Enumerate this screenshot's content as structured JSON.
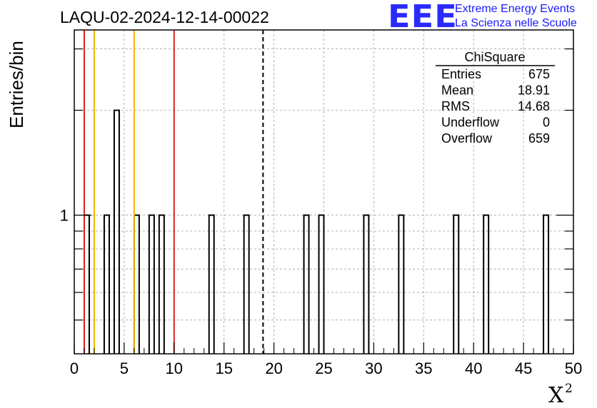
{
  "header": {
    "title": "LAQU-02-2024-12-14-00022"
  },
  "logo": {
    "mark": "EEE",
    "line1": "Extreme Energy Events",
    "line2": "La Scienza nelle Scuole",
    "color": "#1a1aff"
  },
  "axes": {
    "ylabel": "Entries/bin",
    "xlabel": "X",
    "xlabel_sup": "2"
  },
  "stats_box": {
    "title": "ChiSquare",
    "rows": [
      {
        "label": "Entries",
        "value": "675"
      },
      {
        "label": "Mean",
        "value": "18.91"
      },
      {
        "label": "RMS",
        "value": "14.68"
      },
      {
        "label": "Underflow",
        "value": "0"
      },
      {
        "label": "Overflow",
        "value": "659"
      }
    ]
  },
  "chart_data": {
    "type": "bar",
    "histogram": true,
    "title": "LAQU-02-2024-12-14-00022",
    "xlabel": "X²",
    "ylabel": "Entries/bin",
    "xlim": [
      0,
      50
    ],
    "bin_width": 0.5,
    "y_scale": "log",
    "ylim": [
      0.4,
      3.4
    ],
    "x_ticks": [
      0,
      5,
      10,
      15,
      20,
      25,
      30,
      35,
      40,
      45,
      50
    ],
    "y_ticks": [
      1
    ],
    "grid": true,
    "bins": [
      {
        "x": 1.0,
        "count": 1
      },
      {
        "x": 3.0,
        "count": 1
      },
      {
        "x": 4.0,
        "count": 2
      },
      {
        "x": 6.0,
        "count": 1
      },
      {
        "x": 7.5,
        "count": 1
      },
      {
        "x": 8.5,
        "count": 1
      },
      {
        "x": 13.5,
        "count": 1
      },
      {
        "x": 17.0,
        "count": 1
      },
      {
        "x": 23.0,
        "count": 1
      },
      {
        "x": 24.5,
        "count": 1
      },
      {
        "x": 29.0,
        "count": 1
      },
      {
        "x": 32.5,
        "count": 1
      },
      {
        "x": 38.0,
        "count": 1
      },
      {
        "x": 41.0,
        "count": 1
      },
      {
        "x": 47.0,
        "count": 1
      }
    ],
    "vertical_lines": [
      {
        "x": 1,
        "color": "#dd2222",
        "style": "solid"
      },
      {
        "x": 2,
        "color": "#f0b400",
        "style": "solid"
      },
      {
        "x": 6,
        "color": "#f0b400",
        "style": "solid"
      },
      {
        "x": 10,
        "color": "#dd2222",
        "style": "solid"
      },
      {
        "x": 18.91,
        "color": "#000000",
        "style": "dashed"
      }
    ]
  }
}
